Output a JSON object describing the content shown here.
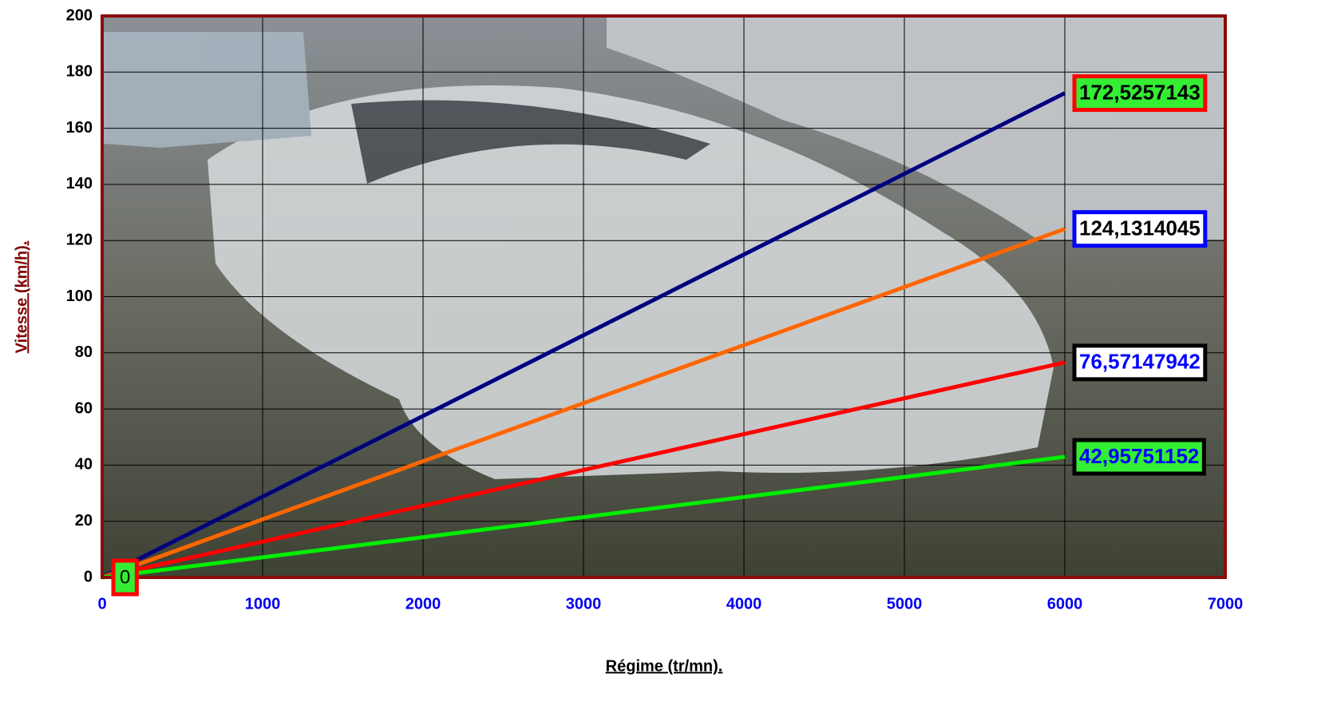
{
  "chart_data": {
    "type": "line",
    "x_label": "Régime (tr/mn).",
    "y_label": "Vitesse (km/h).",
    "x": [
      0,
      6000
    ],
    "series": [
      {
        "color": "#000080",
        "values": [
          0,
          172.5257143
        ],
        "value_labels": [
          "0",
          "172,5257143"
        ],
        "label_fill": "#33ee33",
        "label_border": "#ff0000",
        "label_color": "#000000"
      },
      {
        "color": "#ff6600",
        "values": [
          0,
          124.1314045
        ],
        "value_labels": [
          null,
          "124,1314045"
        ],
        "label_fill": "#ffffff",
        "label_border": "#0000ff",
        "label_color": "#000000"
      },
      {
        "color": "#ff0000",
        "values": [
          0,
          76.57147942
        ],
        "value_labels": [
          null,
          "76,57147942"
        ],
        "label_fill": "#ffffff",
        "label_border": "#000000",
        "label_color": "#0000ff"
      },
      {
        "color": "#00ee00",
        "values": [
          0,
          42.95751152
        ],
        "value_labels": [
          null,
          "42,95751152"
        ],
        "label_fill": "#33ee33",
        "label_border": "#000000",
        "label_color": "#0000ff"
      }
    ],
    "xlim": [
      0,
      7000
    ],
    "xticks": [
      0,
      1000,
      2000,
      3000,
      4000,
      5000,
      6000,
      7000
    ],
    "ylim": [
      0,
      200
    ],
    "yticks": [
      0,
      20,
      40,
      60,
      80,
      100,
      120,
      140,
      160,
      180,
      200
    ],
    "grid": true
  }
}
